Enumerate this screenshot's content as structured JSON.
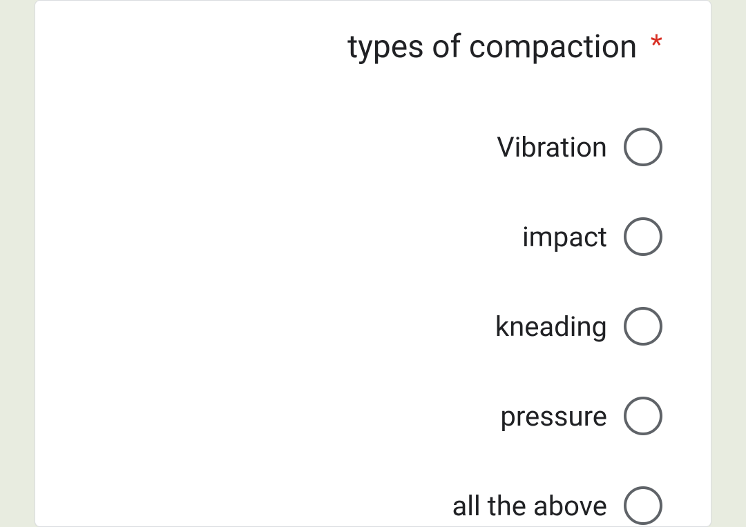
{
  "question": {
    "required_marker": "*",
    "title": "types of compaction",
    "options": [
      {
        "label": "Vibration"
      },
      {
        "label": "impact"
      },
      {
        "label": "kneading"
      },
      {
        "label": "pressure"
      },
      {
        "label": "all the above"
      }
    ]
  },
  "colors": {
    "page_background": "#e8ece0",
    "card_background": "#ffffff",
    "card_border": "#dadce0",
    "text": "#202124",
    "required": "#d93025",
    "radio_border": "#5f6368"
  }
}
